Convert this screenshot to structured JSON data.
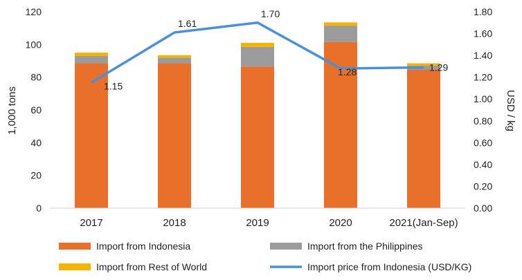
{
  "chart_data": {
    "type": "bar",
    "stacked": true,
    "categories": [
      "2017",
      "2018",
      "2019",
      "2020",
      "2021(Jan-Sep)"
    ],
    "ylabel": "1,000 tons",
    "y2label": "USD / kg",
    "ylim": [
      0,
      120
    ],
    "yticks": [
      0,
      20,
      40,
      60,
      80,
      100,
      120
    ],
    "y2lim": [
      0,
      1.8
    ],
    "y2ticks": [
      "0.00",
      "0.20",
      "0.40",
      "0.60",
      "0.80",
      "1.00",
      "1.20",
      "1.40",
      "1.60",
      "1.80"
    ],
    "grid": false,
    "legend_position": "bottom",
    "series": [
      {
        "name": "Import from Indonesia",
        "kind": "bar",
        "color": "#e8702a",
        "values": [
          88.5,
          88.5,
          86.5,
          101.5,
          84.5
        ]
      },
      {
        "name": "Import from the Philippines",
        "kind": "bar",
        "color": "#9b9b9b",
        "values": [
          4.5,
          3.5,
          12,
          10,
          2.5
        ]
      },
      {
        "name": "Import from Rest of World",
        "kind": "bar",
        "color": "#f5b400",
        "values": [
          2,
          1.5,
          2.5,
          2,
          1.5
        ]
      },
      {
        "name": "Import price from Indonesia (USD/KG)",
        "kind": "line",
        "axis": "right",
        "color": "#4a90d9",
        "values": [
          1.15,
          1.61,
          1.7,
          1.28,
          1.29
        ],
        "labels": [
          "1.15",
          "1.61",
          "1.70",
          "1.28",
          "1.29"
        ]
      }
    ]
  }
}
